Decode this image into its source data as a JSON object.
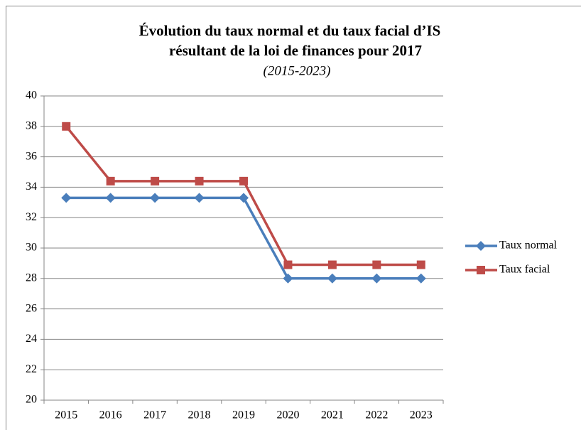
{
  "chart_data": {
    "type": "line",
    "title": [
      "Évolution du taux normal et du taux facial d’IS",
      "résultant de la loi de finances pour 2017"
    ],
    "subtitle": "(2015-2023)",
    "categories": [
      "2015",
      "2016",
      "2017",
      "2018",
      "2019",
      "2020",
      "2021",
      "2022",
      "2023"
    ],
    "series": [
      {
        "name": "Taux normal",
        "color": "#4a7ebb",
        "marker": "diamond",
        "values": [
          33.3,
          33.3,
          33.3,
          33.3,
          33.3,
          28,
          28,
          28,
          28
        ]
      },
      {
        "name": "Taux facial",
        "color": "#be4b48",
        "marker": "square",
        "values": [
          38,
          34.4,
          34.4,
          34.4,
          34.4,
          28.9,
          28.9,
          28.9,
          28.9
        ]
      }
    ],
    "ylim": [
      20,
      40
    ],
    "yticks": [
      20,
      22,
      24,
      26,
      28,
      30,
      32,
      34,
      36,
      38,
      40
    ],
    "grid": true,
    "legend": "right"
  }
}
